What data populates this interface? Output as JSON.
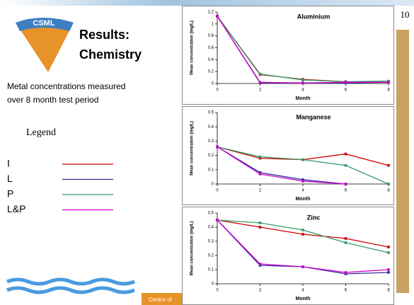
{
  "slide": {
    "page_number": "10",
    "logo": "CSML",
    "title_lines": [
      "Results:",
      "Chemistry"
    ],
    "description_lines": [
      "Metal concentrations measured",
      "over 8 month test period"
    ],
    "legend_title": "Legend",
    "footer": "Centre of"
  },
  "chart_data": [
    {
      "type": "line",
      "title": "Aluminium",
      "x_label": "Month",
      "y_label": "Mean concentration (mg/L)",
      "x": [
        0,
        2,
        4,
        6,
        8
      ],
      "xlim": [
        0,
        8
      ],
      "xticks": [
        0,
        2,
        4,
        6,
        8
      ],
      "ylim": [
        0,
        1.2
      ],
      "yticks": [
        0,
        0.2,
        0.4,
        0.6,
        0.8,
        1,
        1.2
      ],
      "series": [
        {
          "name": "I",
          "color": "#cc0000",
          "values": [
            1.13,
            0.15,
            0.07,
            0.03,
            0.02
          ]
        },
        {
          "name": "L",
          "color": "#333399",
          "values": [
            1.13,
            0.01,
            0.01,
            0.01,
            0.02
          ]
        },
        {
          "name": "P",
          "color": "#339966",
          "values": [
            1.13,
            0.16,
            0.06,
            0.03,
            0.04
          ]
        },
        {
          "name": "L&P",
          "color": "#cc00cc",
          "values": [
            1.13,
            0.02,
            0.01,
            0.02,
            0.02
          ]
        }
      ]
    },
    {
      "type": "line",
      "title": "Manganese",
      "x_label": "Month",
      "y_label": "Mean concentration (mg/L)",
      "x": [
        0,
        2,
        4,
        6,
        8
      ],
      "xlim": [
        0,
        8
      ],
      "xticks": [
        0,
        2,
        4,
        6,
        8
      ],
      "ylim": [
        0,
        0.5
      ],
      "yticks": [
        0,
        0.1,
        0.2,
        0.3,
        0.4,
        0.5
      ],
      "series": [
        {
          "name": "I",
          "color": "#cc0000",
          "values": [
            0.26,
            0.18,
            0.17,
            0.21,
            0.13
          ]
        },
        {
          "name": "L",
          "color": "#333399",
          "values": [
            0.26,
            0.08,
            0.03,
            0,
            null
          ]
        },
        {
          "name": "P",
          "color": "#339966",
          "values": [
            0.26,
            0.19,
            0.17,
            0.13,
            0
          ]
        },
        {
          "name": "L&P",
          "color": "#cc00cc",
          "values": [
            0.26,
            0.07,
            0.02,
            0,
            null
          ]
        }
      ]
    },
    {
      "type": "line",
      "title": "Zinc",
      "x_label": "Month",
      "y_label": "Mean concentration (mg/L)",
      "x": [
        0,
        2,
        4,
        6,
        8
      ],
      "xlim": [
        0,
        8
      ],
      "xticks": [
        0,
        2,
        4,
        6,
        8
      ],
      "ylim": [
        0,
        0.5
      ],
      "yticks": [
        0,
        0.1,
        0.2,
        0.3,
        0.4,
        0.5
      ],
      "series": [
        {
          "name": "I",
          "color": "#cc0000",
          "values": [
            0.45,
            0.4,
            0.35,
            0.32,
            0.26
          ]
        },
        {
          "name": "L",
          "color": "#333399",
          "values": [
            0.45,
            0.13,
            0.12,
            0.07,
            0.08
          ]
        },
        {
          "name": "P",
          "color": "#339966",
          "values": [
            0.45,
            0.43,
            0.38,
            0.29,
            0.22
          ]
        },
        {
          "name": "L&P",
          "color": "#cc00cc",
          "values": [
            0.45,
            0.14,
            0.12,
            0.08,
            0.1
          ]
        }
      ]
    }
  ]
}
